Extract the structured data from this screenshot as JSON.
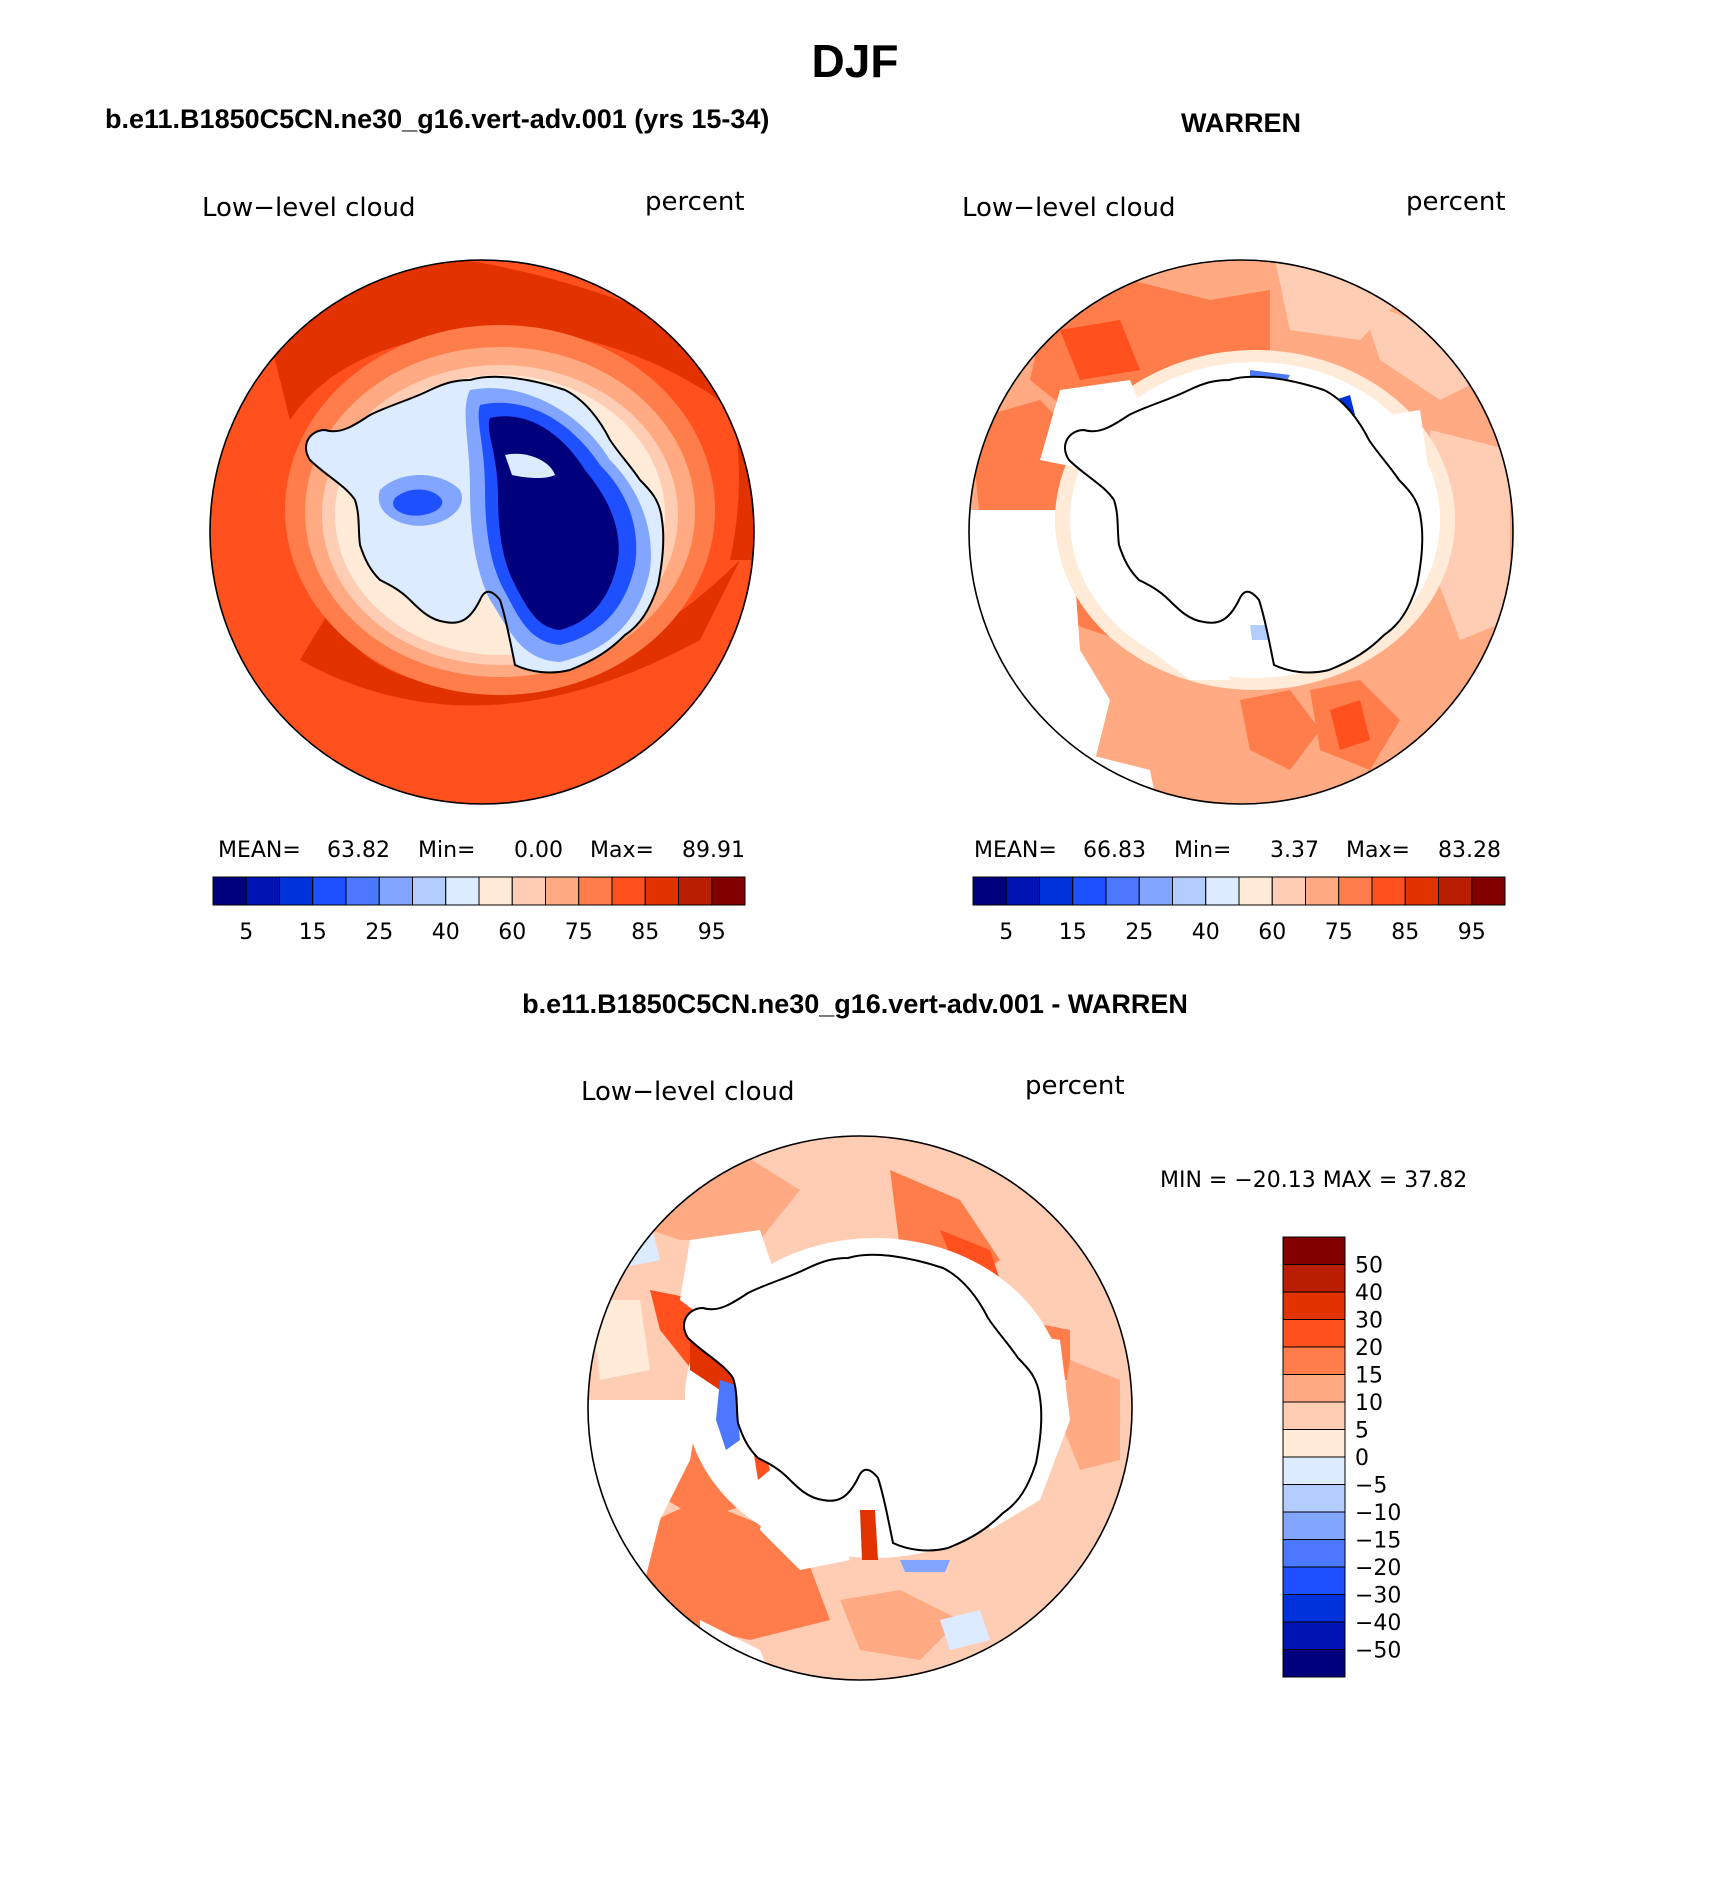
{
  "page_title": "DJF",
  "colors": {
    "abs_scale": [
      "#00007d",
      "#0014b4",
      "#0032dc",
      "#1e50ff",
      "#4b78ff",
      "#82a5ff",
      "#b4cdff",
      "#dcebff",
      "#ffebd7",
      "#ffcdb4",
      "#ffaa82",
      "#ff7d4b",
      "#ff501e",
      "#e13200",
      "#b91e00",
      "#820000"
    ],
    "diff_scale": [
      "#00007d",
      "#0014b4",
      "#0032dc",
      "#1e50ff",
      "#4b78ff",
      "#82a5ff",
      "#b4cdff",
      "#dcebff",
      "#ffebd7",
      "#ffcdb4",
      "#ffaa82",
      "#ff7d4b",
      "#ff501e",
      "#e13200",
      "#b91e00",
      "#820000"
    ],
    "missing": "#ffffff",
    "coast": "#000000"
  },
  "panels": [
    {
      "header": "b.e11.B1850C5CN.ne30_g16.vert-adv.001 (yrs 15-34)",
      "variable": "Low−level cloud",
      "units": "percent",
      "stats": {
        "mean_label": "MEAN=",
        "mean": "63.82",
        "min_label": "Min=",
        "min": "0.00",
        "max_label": "Max=",
        "max": "89.91"
      },
      "colorbar_ticks": [
        "5",
        "15",
        "25",
        "40",
        "60",
        "75",
        "85",
        "95"
      ],
      "field": "model"
    },
    {
      "header": "WARREN",
      "variable": "Low−level cloud",
      "units": "percent",
      "stats": {
        "mean_label": "MEAN=",
        "mean": "66.83",
        "min_label": "Min=",
        "min": "3.37",
        "max_label": "Max=",
        "max": "83.28"
      },
      "colorbar_ticks": [
        "5",
        "15",
        "25",
        "40",
        "60",
        "75",
        "85",
        "95"
      ],
      "field": "obs"
    },
    {
      "header": "b.e11.B1850C5CN.ne30_g16.vert-adv.001 - WARREN",
      "variable": "Low−level cloud",
      "units": "percent",
      "minmax": "MIN = −20.13 MAX =  37.82",
      "colorbar_ticks": [
        "50",
        "40",
        "30",
        "20",
        "15",
        "10",
        "5",
        "0",
        "−5",
        "−10",
        "−15",
        "−20",
        "−30",
        "−40",
        "−50"
      ],
      "field": "diff"
    }
  ]
}
